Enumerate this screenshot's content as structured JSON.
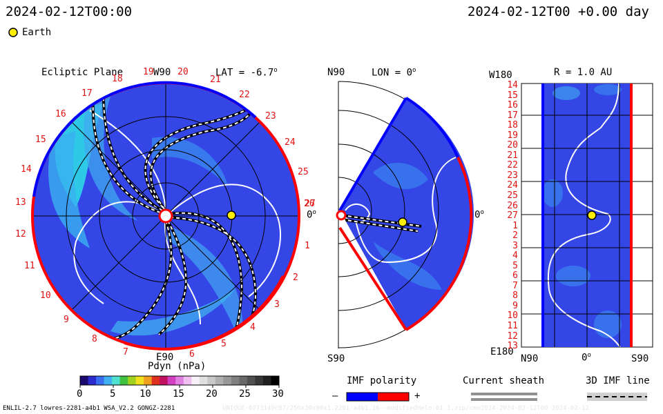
{
  "header": {
    "left_timestamp": "2024-02-12T00:00",
    "right_timestamp": "2024-02-12T00 +0.00 day",
    "legend_label": "Earth"
  },
  "ecliptic_panel": {
    "title": "Ecliptic Plane",
    "top_label": "W90",
    "lat_label": "LAT = -6.7",
    "lat_degree_mark": "o",
    "right_label": "0",
    "right_degree_mark": "o",
    "bottom_label": "E90",
    "carrington_numbers": [
      "1",
      "2",
      "3",
      "4",
      "5",
      "6",
      "7",
      "8",
      "9",
      "10",
      "11",
      "12",
      "13",
      "14",
      "15",
      "16",
      "17",
      "18",
      "19",
      "20",
      "21",
      "22",
      "23",
      "24",
      "25",
      "26",
      "27"
    ]
  },
  "meridional_panel": {
    "top_left_label": "N90",
    "lon_label": "LON = 0",
    "lon_degree_mark": "o",
    "right_label": "0",
    "right_degree_mark": "o",
    "bottom_left_label": "S90"
  },
  "radial_panel": {
    "top_left_label": "W180",
    "title": "R = 1.0 AU",
    "bottom_left_label": "E180",
    "x_labels": [
      "N90",
      "0",
      "S90"
    ],
    "x_degree_mark": "o",
    "y_labels": [
      "14",
      "15",
      "16",
      "17",
      "18",
      "19",
      "20",
      "21",
      "22",
      "23",
      "24",
      "25",
      "26",
      "27",
      "1",
      "2",
      "3",
      "4",
      "5",
      "6",
      "7",
      "8",
      "9",
      "10",
      "11",
      "12",
      "13"
    ]
  },
  "colorbar": {
    "title": "Pdyn (nPa)",
    "ticks": [
      "0",
      "5",
      "10",
      "15",
      "20",
      "25",
      "30"
    ],
    "colors": [
      "#1a0a6e",
      "#2b2bd0",
      "#3a6cf0",
      "#40b0f0",
      "#50e0d0",
      "#40c040",
      "#a0d020",
      "#f0e020",
      "#f0a020",
      "#e03020",
      "#c01060",
      "#d040c0",
      "#e080e0",
      "#f0c0f0",
      "#f8f0f8",
      "#e0e0e0",
      "#c8c8c8",
      "#b0b0b0",
      "#989898",
      "#808080",
      "#686868",
      "#505050",
      "#383838",
      "#202020",
      "#000000"
    ]
  },
  "imf_legend": {
    "title": "IMF polarity",
    "minus": "–",
    "plus": "+",
    "colors": {
      "negative": "#0000ff",
      "positive": "#ff0000"
    }
  },
  "current_sheath_legend": {
    "title": "Current sheath"
  },
  "imf_line_legend": {
    "title": "3D IMF line"
  },
  "footer": {
    "left_text": "ENLIL-2.7 lowres-2281-a4b1 WSA_V2.2 GONGZ-2281",
    "right_text": "UNIQUE-0273149c87/256x30x90x1.2281-a4b1.16--modifiedHelo.01.1,zip/cme2024-2024-02-12T00 2024-02-12"
  },
  "colors": {
    "background_plasma": "#3446e6",
    "accent_red": "#e01010",
    "earth": "#ffee00"
  }
}
